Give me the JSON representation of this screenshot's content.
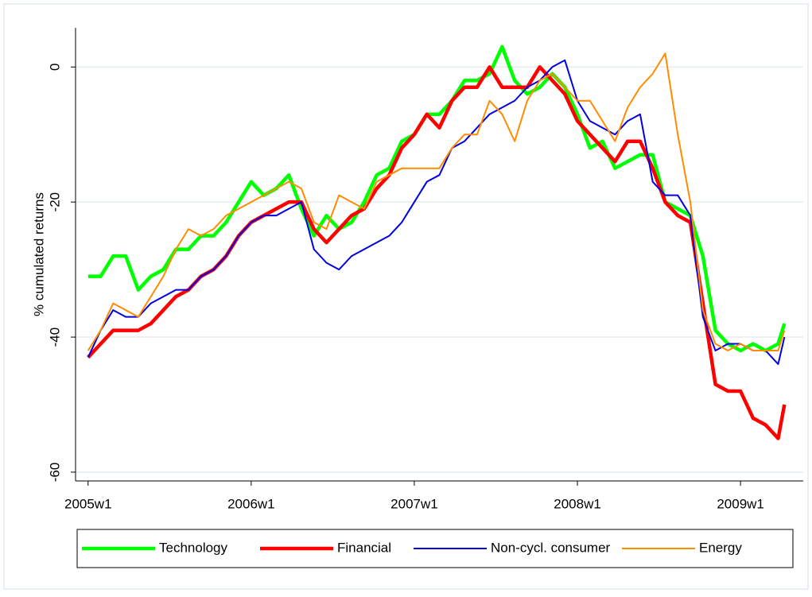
{
  "chart_data": {
    "type": "line",
    "y_label": "% cumulated returns",
    "x": [
      "2005w1",
      "2005w5",
      "2005w9",
      "2005w13",
      "2005w17",
      "2005w21",
      "2005w25",
      "2005w29",
      "2005w33",
      "2005w37",
      "2005w41",
      "2005w45",
      "2005w49",
      "2006w1",
      "2006w5",
      "2006w9",
      "2006w13",
      "2006w17",
      "2006w21",
      "2006w25",
      "2006w29",
      "2006w33",
      "2006w37",
      "2006w41",
      "2006w45",
      "2006w49",
      "2007w1",
      "2007w5",
      "2007w9",
      "2007w13",
      "2007w17",
      "2007w21",
      "2007w25",
      "2007w29",
      "2007w33",
      "2007w37",
      "2007w41",
      "2007w45",
      "2007w49",
      "2008w1",
      "2008w5",
      "2008w9",
      "2008w13",
      "2008w17",
      "2008w21",
      "2008w25",
      "2008w29",
      "2008w33",
      "2008w37",
      "2008w41",
      "2008w45",
      "2008w49",
      "2009w1",
      "2009w5",
      "2009w9",
      "2009w13",
      "2009w15"
    ],
    "series": [
      {
        "name": "Technology",
        "color": "#00ff00",
        "width": 4.5,
        "values": [
          -31,
          -31,
          -28,
          -28,
          -33,
          -31,
          -30,
          -27,
          -27,
          -25,
          -25,
          -23,
          -20,
          -17,
          -19,
          -18,
          -16,
          -21,
          -25,
          -22,
          -24,
          -23,
          -20,
          -16,
          -15,
          -11,
          -10,
          -7,
          -7,
          -5,
          -2,
          -2,
          -1,
          3,
          -2,
          -4,
          -3,
          -1,
          -3,
          -7,
          -12,
          -11,
          -15,
          -14,
          -13,
          -13,
          -20,
          -21,
          -22,
          -28,
          -39,
          -41,
          -42,
          -41,
          -42,
          -41,
          -38
        ]
      },
      {
        "name": "Financial",
        "color": "#ff0000",
        "width": 4.5,
        "values": [
          -43,
          -41,
          -39,
          -39,
          -39,
          -38,
          -36,
          -34,
          -33,
          -31,
          -30,
          -28,
          -25,
          -23,
          -22,
          -21,
          -20,
          -20,
          -24,
          -26,
          -24,
          -22,
          -21,
          -18,
          -16,
          -12,
          -10,
          -7,
          -9,
          -5,
          -3,
          -3,
          0,
          -3,
          -3,
          -3,
          0,
          -2,
          -4,
          -8,
          -10,
          -12,
          -14,
          -11,
          -11,
          -15,
          -20,
          -22,
          -23,
          -35,
          -47,
          -48,
          -48,
          -52,
          -53,
          -55,
          -50
        ]
      },
      {
        "name": "Non-cycl. consumer",
        "color": "#0000e0",
        "width": 2,
        "values": [
          -43,
          -39,
          -36,
          -37,
          -37,
          -35,
          -34,
          -33,
          -33,
          -31,
          -30,
          -28,
          -25,
          -23,
          -22,
          -22,
          -21,
          -20,
          -27,
          -29,
          -30,
          -28,
          -27,
          -26,
          -25,
          -23,
          -20,
          -17,
          -16,
          -12,
          -11,
          -9,
          -7,
          -6,
          -5,
          -3,
          -2,
          0,
          1,
          -5,
          -8,
          -9,
          -10,
          -8,
          -7,
          -17,
          -19,
          -19,
          -22,
          -37,
          -42,
          -41,
          -41,
          -42,
          -42,
          -44,
          -40
        ]
      },
      {
        "name": "Energy",
        "color": "#ff8c00",
        "width": 2,
        "values": [
          -42,
          -39,
          -35,
          -36,
          -37,
          -34,
          -31,
          -27,
          -24,
          -25,
          -24,
          -22,
          -21,
          -20,
          -19,
          -18,
          -17,
          -18,
          -23,
          -24,
          -19,
          -20,
          -21,
          -17,
          -16,
          -15,
          -15,
          -15,
          -15,
          -12,
          -10,
          -10,
          -5,
          -7,
          -11,
          -5,
          -2,
          -1,
          -3,
          -5,
          -5,
          -8,
          -11,
          -6,
          -3,
          -1,
          2,
          -10,
          -20,
          -36,
          -41,
          -42,
          -41,
          -42,
          -42,
          -42,
          -39
        ]
      }
    ],
    "xlim": [
      "2004w49",
      "2009w21"
    ],
    "xticks": [
      "2005w1",
      "2006w1",
      "2007w1",
      "2008w1",
      "2009w1"
    ],
    "ylim": [
      -61.3,
      5.8
    ],
    "yticks": [
      0,
      -20,
      -40,
      -60
    ],
    "grid": true
  }
}
